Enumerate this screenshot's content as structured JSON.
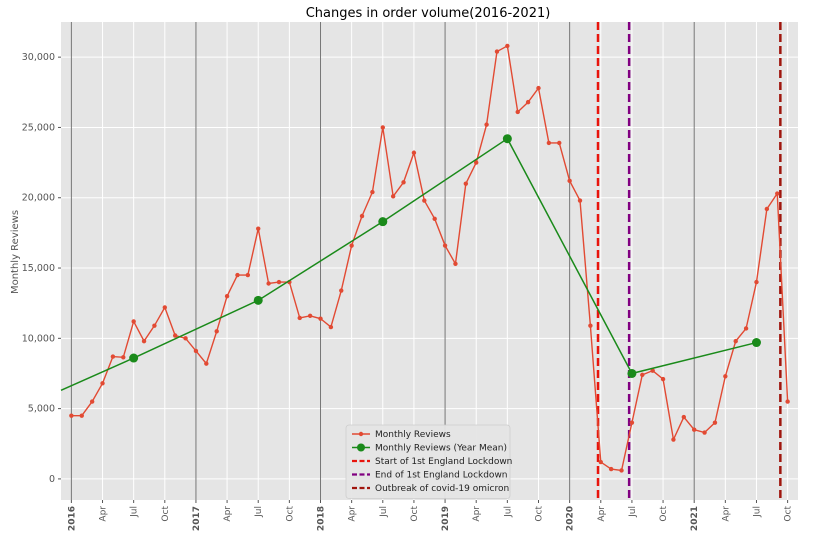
{
  "chart_data": {
    "type": "line",
    "title": "Changes in order volume(2016-2021)",
    "xlabel": "",
    "ylabel": "Monthly Reviews",
    "ylim": [
      -1500,
      32500
    ],
    "xlim": [
      "2015-12",
      "2021-11"
    ],
    "grid": true,
    "legend_position": "bottom-center",
    "y_ticks": [
      0,
      5000,
      10000,
      15000,
      20000,
      25000,
      30000
    ],
    "y_tick_labels": [
      "0",
      "5,000",
      "10,000",
      "15,000",
      "20,000",
      "25,000",
      "30,000"
    ],
    "x_ticks": [
      {
        "date": "2016-01",
        "label": "2016",
        "major": true
      },
      {
        "date": "2016-04",
        "label": "Apr",
        "major": false
      },
      {
        "date": "2016-07",
        "label": "Jul",
        "major": false
      },
      {
        "date": "2016-10",
        "label": "Oct",
        "major": false
      },
      {
        "date": "2017-01",
        "label": "2017",
        "major": true
      },
      {
        "date": "2017-04",
        "label": "Apr",
        "major": false
      },
      {
        "date": "2017-07",
        "label": "Jul",
        "major": false
      },
      {
        "date": "2017-10",
        "label": "Oct",
        "major": false
      },
      {
        "date": "2018-01",
        "label": "2018",
        "major": true
      },
      {
        "date": "2018-04",
        "label": "Apr",
        "major": false
      },
      {
        "date": "2018-07",
        "label": "Jul",
        "major": false
      },
      {
        "date": "2018-10",
        "label": "Oct",
        "major": false
      },
      {
        "date": "2019-01",
        "label": "2019",
        "major": true
      },
      {
        "date": "2019-04",
        "label": "Apr",
        "major": false
      },
      {
        "date": "2019-07",
        "label": "Jul",
        "major": false
      },
      {
        "date": "2019-10",
        "label": "Oct",
        "major": false
      },
      {
        "date": "2020-01",
        "label": "2020",
        "major": true
      },
      {
        "date": "2020-04",
        "label": "Apr",
        "major": false
      },
      {
        "date": "2020-07",
        "label": "Jul",
        "major": false
      },
      {
        "date": "2020-10",
        "label": "Oct",
        "major": false
      },
      {
        "date": "2021-01",
        "label": "2021",
        "major": true
      },
      {
        "date": "2021-04",
        "label": "Apr",
        "major": false
      },
      {
        "date": "2021-07",
        "label": "Jul",
        "major": false
      },
      {
        "date": "2021-10",
        "label": "Oct",
        "major": false
      }
    ],
    "series": [
      {
        "name": "Monthly Reviews",
        "color": "#e24a33",
        "marker": "dot",
        "points": [
          [
            "2016-01",
            4500
          ],
          [
            "2016-02",
            4500
          ],
          [
            "2016-03",
            5500
          ],
          [
            "2016-04",
            6800
          ],
          [
            "2016-05",
            8700
          ],
          [
            "2016-06",
            8650
          ],
          [
            "2016-07",
            11200
          ],
          [
            "2016-08",
            9800
          ],
          [
            "2016-09",
            10900
          ],
          [
            "2016-10",
            12200
          ],
          [
            "2016-11",
            10200
          ],
          [
            "2016-12",
            10000
          ],
          [
            "2017-01",
            9100
          ],
          [
            "2017-02",
            8200
          ],
          [
            "2017-03",
            10500
          ],
          [
            "2017-04",
            13000
          ],
          [
            "2017-05",
            14500
          ],
          [
            "2017-06",
            14500
          ],
          [
            "2017-07",
            17800
          ],
          [
            "2017-08",
            13900
          ],
          [
            "2017-09",
            14000
          ],
          [
            "2017-10",
            14000
          ],
          [
            "2017-11",
            11450
          ],
          [
            "2017-12",
            11600
          ],
          [
            "2018-01",
            11400
          ],
          [
            "2018-02",
            10800
          ],
          [
            "2018-03",
            13400
          ],
          [
            "2018-04",
            16600
          ],
          [
            "2018-05",
            18700
          ],
          [
            "2018-06",
            20400
          ],
          [
            "2018-07",
            25000
          ],
          [
            "2018-08",
            20100
          ],
          [
            "2018-09",
            21100
          ],
          [
            "2018-10",
            23200
          ],
          [
            "2018-11",
            19800
          ],
          [
            "2018-12",
            18500
          ],
          [
            "2019-01",
            16600
          ],
          [
            "2019-02",
            15300
          ],
          [
            "2019-03",
            21000
          ],
          [
            "2019-04",
            22500
          ],
          [
            "2019-05",
            25200
          ],
          [
            "2019-06",
            30400
          ],
          [
            "2019-07",
            30800
          ],
          [
            "2019-08",
            26100
          ],
          [
            "2019-09",
            26800
          ],
          [
            "2019-10",
            27800
          ],
          [
            "2019-11",
            23900
          ],
          [
            "2019-12",
            23900
          ],
          [
            "2020-01",
            21200
          ],
          [
            "2020-02",
            19800
          ],
          [
            "2020-03",
            10900
          ],
          [
            "2020-04",
            1200
          ],
          [
            "2020-05",
            700
          ],
          [
            "2020-06",
            600
          ],
          [
            "2020-07",
            4000
          ],
          [
            "2020-08",
            7400
          ],
          [
            "2020-09",
            7700
          ],
          [
            "2020-10",
            7100
          ],
          [
            "2020-11",
            2800
          ],
          [
            "2020-12",
            4400
          ],
          [
            "2021-01",
            3500
          ],
          [
            "2021-02",
            3300
          ],
          [
            "2021-03",
            4000
          ],
          [
            "2021-04",
            7300
          ],
          [
            "2021-05",
            9800
          ],
          [
            "2021-06",
            10700
          ],
          [
            "2021-07",
            14000
          ],
          [
            "2021-08",
            19200
          ],
          [
            "2021-09",
            20300
          ],
          [
            "2021-10",
            5500
          ]
        ]
      },
      {
        "name": "Monthly Reviews (Year Mean)",
        "color": "#1a8a1a",
        "marker": "big-dot",
        "points": [
          [
            "2016-07",
            8600
          ],
          [
            "2017-07",
            12700
          ],
          [
            "2018-07",
            18300
          ],
          [
            "2019-07",
            24200
          ],
          [
            "2020-07",
            7500
          ],
          [
            "2021-07",
            9700
          ]
        ],
        "line_extends_from": [
          "2015-12",
          6300
        ]
      }
    ],
    "vlines": [
      {
        "name": "Start of 1st England Lockdown",
        "date": "2020-03-23",
        "color": "#e8140c",
        "dash": "8,4"
      },
      {
        "name": "End of 1st England Lockdown",
        "date": "2020-06-23",
        "color": "#800080",
        "dash": "8,4"
      },
      {
        "name": "Outbreak of covid-19 omicron",
        "date": "2021-09-10",
        "color": "#a0160e",
        "dash": "8,4"
      }
    ]
  }
}
